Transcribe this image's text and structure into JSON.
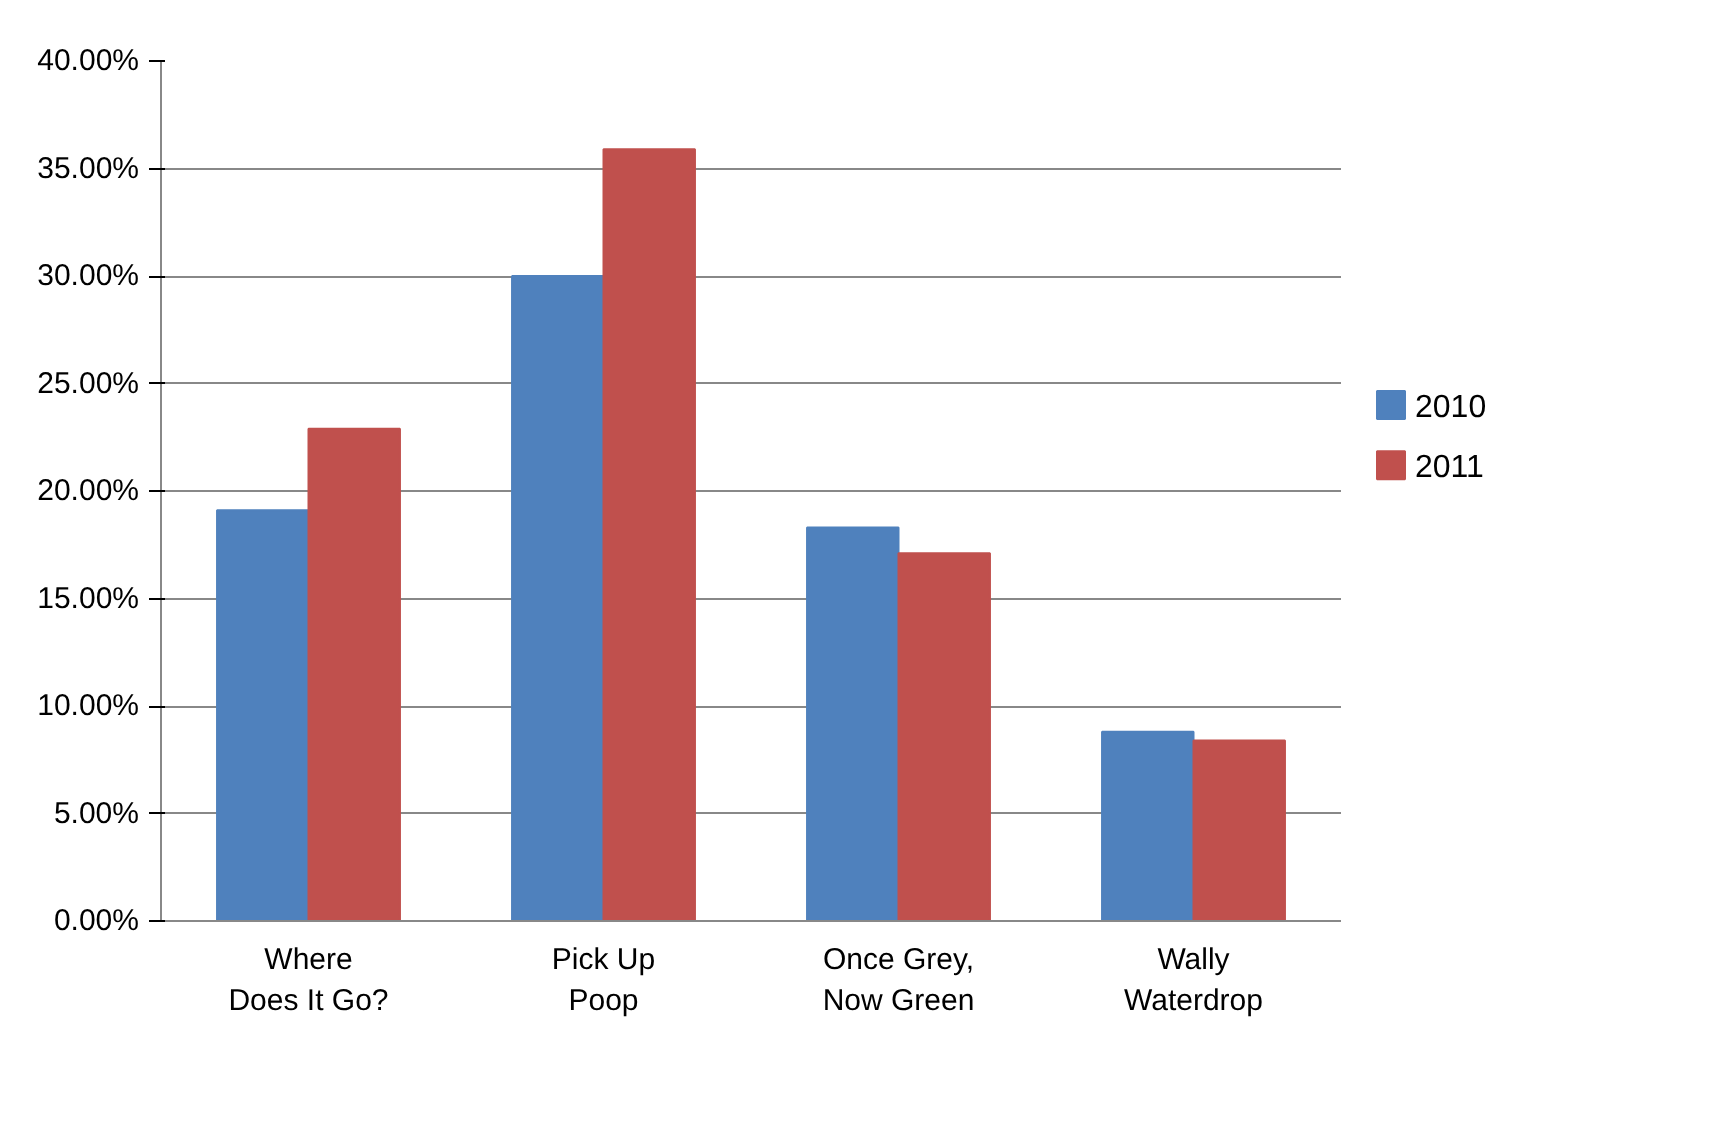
{
  "chart_data": {
    "type": "bar",
    "categories": [
      "Where\nDoes It Go?",
      "Pick Up\nPoop",
      "Once Grey,\nNow Green",
      "Wally\nWaterdrop"
    ],
    "series": [
      {
        "name": "2010",
        "color": "#4f81bd",
        "values": [
          19.1,
          30.0,
          18.3,
          8.8
        ]
      },
      {
        "name": "2011",
        "color": "#c0504d",
        "values": [
          22.9,
          35.9,
          17.1,
          8.4
        ]
      }
    ],
    "ylim": [
      0,
      40
    ],
    "yticks": [
      {
        "value": 0,
        "label": "0.00%"
      },
      {
        "value": 5,
        "label": "5.00%"
      },
      {
        "value": 10,
        "label": "10.00%"
      },
      {
        "value": 15,
        "label": "15.00%"
      },
      {
        "value": 20,
        "label": "20.00%"
      },
      {
        "value": 25,
        "label": "25.00%"
      },
      {
        "value": 30,
        "label": "30.00%"
      },
      {
        "value": 35,
        "label": "35.00%"
      },
      {
        "value": 40,
        "label": "40.00%"
      }
    ],
    "grid": "y",
    "legend": "right"
  }
}
